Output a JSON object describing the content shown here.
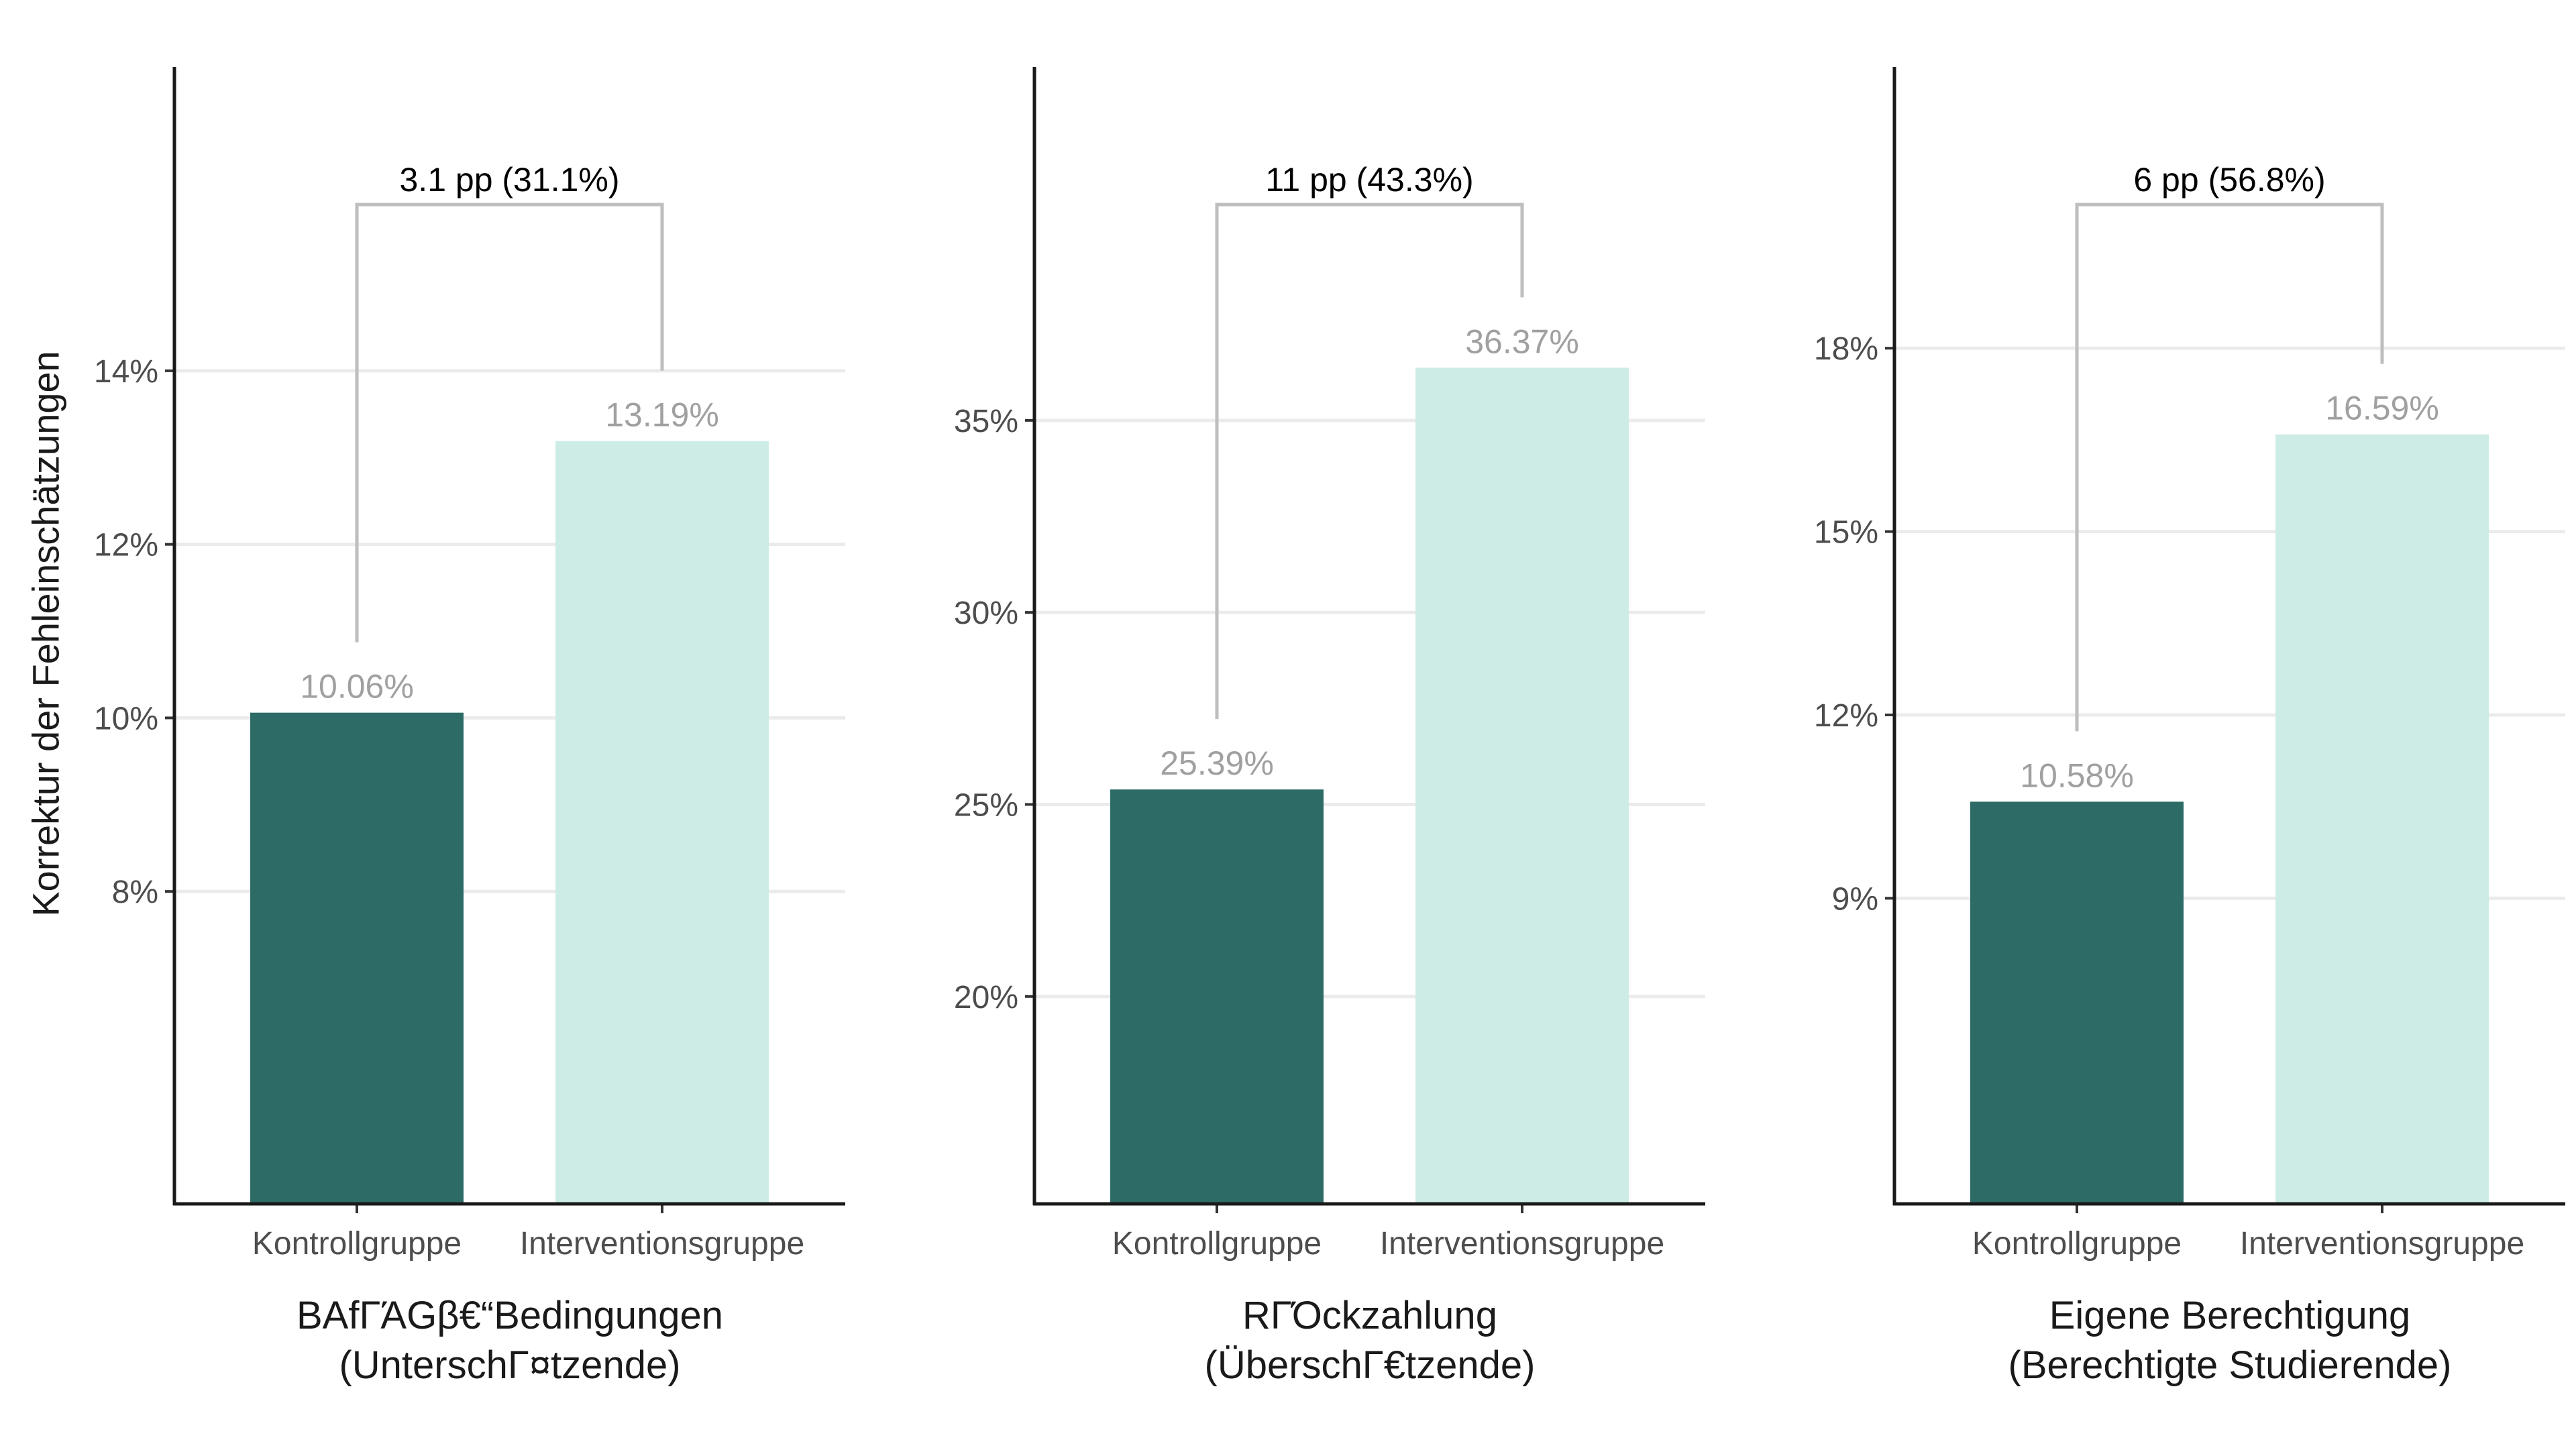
{
  "ylabel": "Korrektur der Fehleinschätzungen",
  "colors": {
    "control": "#2d6b66",
    "intervention": "#cdece6",
    "grid": "#ebebeb",
    "bracket": "#bebebe",
    "value_label": "#a0a0a0",
    "axis": "#1a1a1a"
  },
  "chart_data": [
    {
      "type": "bar",
      "title": "BAfΓΆGβ€“Bedingungen",
      "subtitle": "(UnterschΓ¤tzende)",
      "categories": [
        "Kontrollgruppe",
        "Interventionsgruppe"
      ],
      "values": [
        10.06,
        13.19
      ],
      "value_labels": [
        "10.06%",
        "13.19%"
      ],
      "ylim": [
        4.4,
        17.5
      ],
      "yticks": [
        8,
        10,
        12,
        14
      ],
      "ytick_labels": [
        "8%",
        "10%",
        "12%",
        "14%"
      ],
      "annotation": "3.1 pp (31.1%)",
      "grid": true
    },
    {
      "type": "bar",
      "title": "RΓΌckzahlung",
      "subtitle": "(ÜberschΓ€tzende)",
      "categories": [
        "Kontrollgruppe",
        "Interventionsgruppe"
      ],
      "values": [
        25.39,
        36.37
      ],
      "value_labels": [
        "25.39%",
        "36.37%"
      ],
      "ylim": [
        14.6,
        44.2
      ],
      "yticks": [
        20,
        25,
        30,
        35
      ],
      "ytick_labels": [
        "20%",
        "25%",
        "30%",
        "35%"
      ],
      "annotation": "11 pp (43.3%)",
      "grid": true
    },
    {
      "type": "bar",
      "title": "Eigene Berechtigung",
      "subtitle": "(Berechtigte Studierende)",
      "categories": [
        "Kontrollgruppe",
        "Interventionsgruppe"
      ],
      "values": [
        10.58,
        16.59
      ],
      "value_labels": [
        "10.58%",
        "16.59%"
      ],
      "ylim": [
        4.0,
        22.6
      ],
      "yticks": [
        9,
        12,
        15,
        18
      ],
      "ytick_labels": [
        "9%",
        "12%",
        "15%",
        "18%"
      ],
      "annotation": "6 pp (56.8%)",
      "grid": true
    }
  ]
}
